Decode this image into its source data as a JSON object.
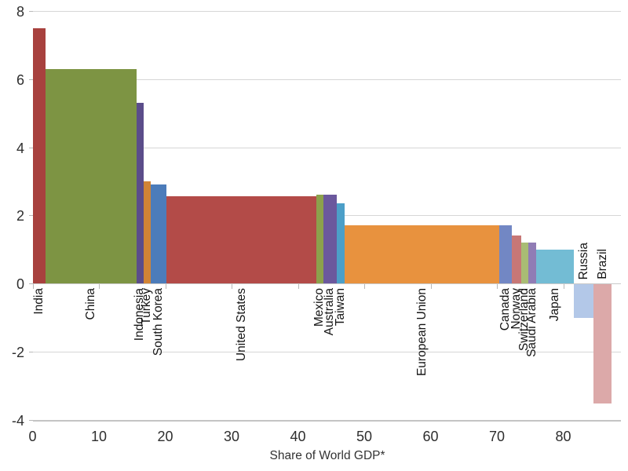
{
  "chart_data": {
    "type": "bar",
    "variant": "variable-width-bar",
    "title": "",
    "xlabel": "Share of World GDP*",
    "ylabel": "",
    "x_axis": {
      "min": 0,
      "max": 89,
      "ticks": [
        0,
        10,
        20,
        30,
        40,
        50,
        60,
        70,
        80
      ]
    },
    "y_axis": {
      "min": -4,
      "max": 8,
      "ticks": [
        8,
        6,
        4,
        2,
        0,
        -2,
        -4
      ],
      "gridlines": [
        8,
        6,
        4,
        2,
        -2,
        -4
      ]
    },
    "legend": "none",
    "grid": "horizontal",
    "bar_value_meaning": "GDP growth, %",
    "bar_width_meaning": "Share of World GDP, %",
    "series": [
      {
        "name": "India",
        "growth": 7.5,
        "share": 2.0,
        "color": "#A8413E"
      },
      {
        "name": "China",
        "growth": 6.3,
        "share": 13.7,
        "color": "#7D9443"
      },
      {
        "name": "Indonesia",
        "growth": 5.3,
        "share": 1.0,
        "color": "#5B4D8A"
      },
      {
        "name": "Turkey",
        "growth": 3.0,
        "share": 1.1,
        "color": "#D28435"
      },
      {
        "name": "South Korea",
        "growth": 2.9,
        "share": 2.4,
        "color": "#4C7CBA"
      },
      {
        "name": "United States",
        "growth": 2.55,
        "share": 22.6,
        "color": "#B34B48"
      },
      {
        "name": "Mexico",
        "growth": 2.6,
        "share": 1.0,
        "color": "#8CA14C"
      },
      {
        "name": "Australia",
        "growth": 2.6,
        "share": 2.0,
        "color": "#6B589D"
      },
      {
        "name": "Taiwan",
        "growth": 2.35,
        "share": 1.3,
        "color": "#4C9FC8"
      },
      {
        "name": "European Union",
        "growth": 1.7,
        "share": 23.2,
        "color": "#E8923E"
      },
      {
        "name": "Canada",
        "growth": 1.7,
        "share": 2.0,
        "color": "#7287C4"
      },
      {
        "name": "Norway",
        "growth": 1.4,
        "share": 1.4,
        "color": "#C77776"
      },
      {
        "name": "Switzerland",
        "growth": 1.2,
        "share": 1.0,
        "color": "#A9BC74"
      },
      {
        "name": "Saudi Arabia",
        "growth": 1.2,
        "share": 1.2,
        "color": "#907CB5"
      },
      {
        "name": "Japan",
        "growth": 1.0,
        "share": 5.7,
        "color": "#73BCD4"
      },
      {
        "name": "Russia",
        "growth": -1.0,
        "share": 3.0,
        "color": "#B3C8E8"
      },
      {
        "name": "Brazil",
        "growth": -3.5,
        "share": 2.7,
        "color": "#DCA9A9"
      }
    ]
  }
}
